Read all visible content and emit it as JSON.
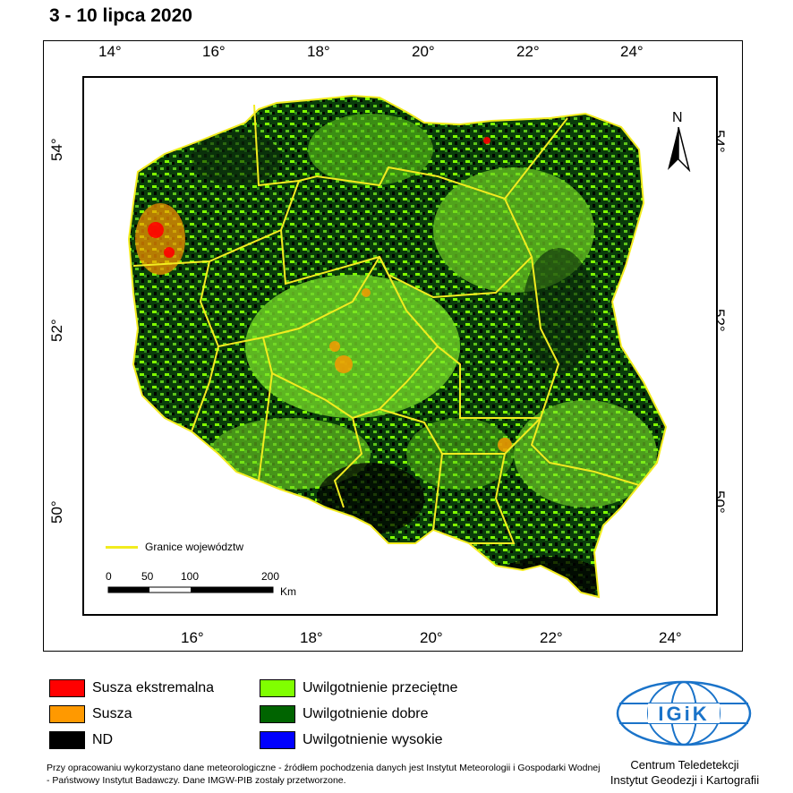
{
  "title": "3 - 10 lipca 2020",
  "longitude_ticks_top": [
    "14°",
    "16°",
    "18°",
    "20°",
    "22°",
    "24°"
  ],
  "longitude_ticks_bottom": [
    "16°",
    "18°",
    "20°",
    "22°",
    "24°"
  ],
  "latitude_ticks_left": [
    "54°",
    "52°",
    "50°"
  ],
  "latitude_ticks_right": [
    "54°",
    "52°",
    "50°"
  ],
  "north_label": "N",
  "boundary_legend": "Granice województw",
  "scale": {
    "labels": [
      "0",
      "50",
      "100",
      "200"
    ],
    "unit": "Km"
  },
  "legend": [
    {
      "label": "Susza ekstremalna",
      "color": "#ff0000"
    },
    {
      "label": "Susza",
      "color": "#ff9900"
    },
    {
      "label": "ND",
      "color": "#000000"
    },
    {
      "label": "Uwilgotnienie przeciętne",
      "color": "#80ff00"
    },
    {
      "label": "Uwilgotnienie dobre",
      "color": "#006400"
    },
    {
      "label": "Uwilgotnienie wysokie",
      "color": "#0000ff"
    }
  ],
  "source_note": "Przy opracowaniu wykorzystano dane meteorologiczne - źródłem pochodzenia danych jest Instytut Meteorologii i Gospodarki Wodnej - Państwowy Instytut Badawczy. Dane IMGW-PIB zostały przetworzone.",
  "logo_text": "IGiK",
  "center_name_line1": "Centrum Teledetekcji",
  "center_name_line2": "Instytut Geodezji i Kartografii"
}
